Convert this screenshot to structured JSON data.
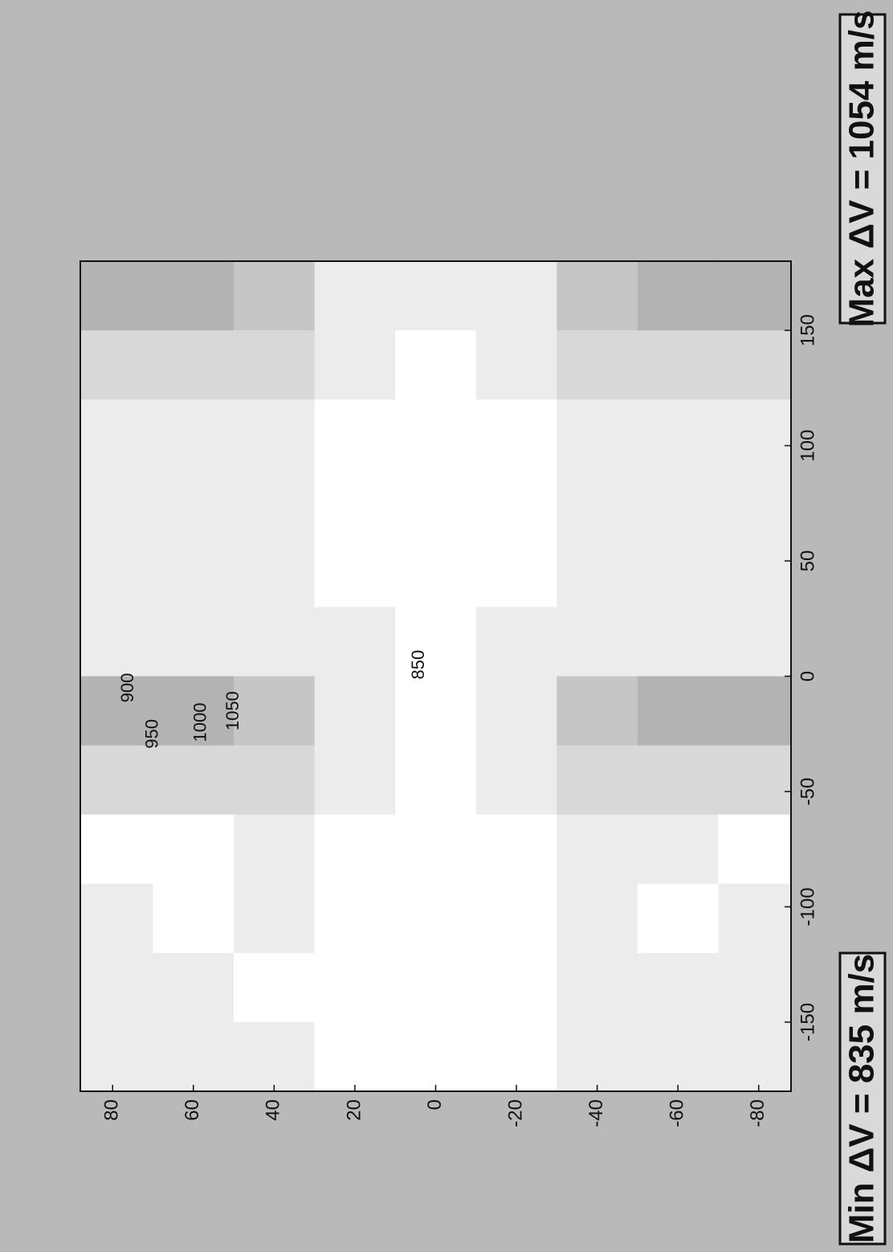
{
  "chart_data": {
    "type": "contour",
    "x": [
      -165,
      -135,
      -105,
      -75,
      -45,
      -15,
      15,
      45,
      75,
      105,
      135,
      165
    ],
    "y": [
      80,
      60,
      40,
      20,
      0,
      -20,
      -40,
      -60,
      -80
    ],
    "z": [
      [
        890,
        855,
        850,
        845,
        920,
        1000,
        880,
        850,
        855,
        850,
        920,
        1010
      ],
      [
        870,
        850,
        848,
        848,
        930,
        1020,
        870,
        852,
        855,
        850,
        930,
        1020
      ],
      [
        855,
        848,
        850,
        850,
        900,
        960,
        860,
        850,
        850,
        850,
        900,
        970
      ],
      [
        845,
        845,
        845,
        845,
        860,
        880,
        850,
        845,
        845,
        845,
        860,
        880
      ],
      [
        840,
        838,
        838,
        838,
        840,
        845,
        840,
        838,
        838,
        838,
        840,
        850
      ],
      [
        845,
        845,
        845,
        845,
        860,
        880,
        850,
        845,
        845,
        845,
        860,
        880
      ],
      [
        855,
        850,
        850,
        850,
        920,
        970,
        860,
        850,
        852,
        850,
        920,
        980
      ],
      [
        870,
        850,
        848,
        850,
        940,
        1040,
        880,
        850,
        852,
        850,
        940,
        1040
      ],
      [
        890,
        855,
        850,
        845,
        920,
        1000,
        880,
        850,
        855,
        850,
        930,
        1010
      ]
    ],
    "levels": [
      850,
      900,
      950,
      1000,
      1050
    ],
    "colors": [
      "#ffffff",
      "#ececec",
      "#d8d8d8",
      "#c6c6c6",
      "#b3b3b3",
      "#a2a2a2"
    ],
    "xlim": [
      -180,
      180
    ],
    "ylim": [
      -88,
      88
    ],
    "xticks": [
      -150,
      -100,
      -50,
      0,
      50,
      100,
      150
    ],
    "yticks": [
      80,
      60,
      40,
      20,
      0,
      -20,
      -40,
      -60,
      -80
    ],
    "annotations": [
      "Min ΔV = 835 m/s",
      "Max ΔV = 1054 m/s"
    ]
  }
}
